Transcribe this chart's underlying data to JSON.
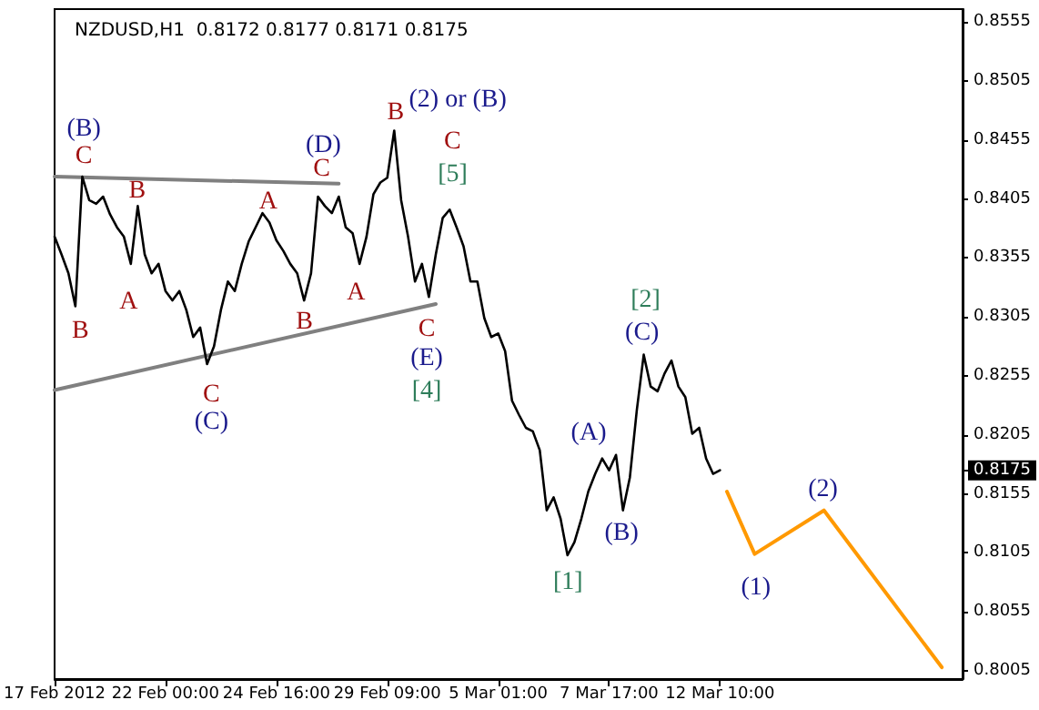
{
  "chart_data": {
    "type": "line",
    "title": "NZDUSD,H1  0.8172 0.8177 0.8171 0.8175",
    "categories": [
      "17 Feb 2012",
      null,
      null,
      null,
      null,
      null,
      null,
      null,
      null,
      null,
      null,
      null,
      null,
      null,
      null,
      null,
      "22 Feb 00:00",
      null,
      null,
      null,
      null,
      null,
      null,
      null,
      null,
      null,
      null,
      null,
      null,
      null,
      null,
      null,
      "24 Feb 16:00",
      null,
      null,
      null,
      null,
      null,
      null,
      null,
      null,
      null,
      null,
      null,
      null,
      null,
      null,
      null,
      "29 Feb 09:00",
      null,
      null,
      null,
      null,
      null,
      null,
      null,
      null,
      null,
      null,
      null,
      null,
      null,
      null,
      null,
      "5 Mar 01:00",
      null,
      null,
      null,
      null,
      null,
      null,
      null,
      null,
      null,
      null,
      null,
      null,
      null,
      null,
      null,
      "7 Mar 17:00",
      null,
      null,
      null,
      null,
      null,
      null,
      null,
      null,
      null,
      null,
      null,
      null,
      null,
      null,
      null,
      "12 Mar 10:00",
      null,
      null,
      null,
      null,
      null,
      null,
      null,
      null,
      null,
      null,
      null,
      null,
      null,
      null,
      null,
      null,
      null,
      null,
      null,
      null,
      null,
      null,
      null,
      null,
      null,
      null,
      null,
      null,
      null,
      null,
      null,
      null,
      null,
      null,
      null
    ],
    "ylim": [
      0.7998,
      0.8566
    ],
    "yticks": [
      0.8005,
      0.8055,
      0.8105,
      0.8155,
      {
        "value": 0.8175,
        "label": "0.8175"
      },
      0.8205,
      0.8255,
      0.8305,
      0.8355,
      0.8405,
      0.8455,
      0.8505,
      0.8555
    ],
    "grid": false,
    "marker": "none",
    "line_style": "solid",
    "series": [
      {
        "color": "#000000",
        "values": [
          0.8373,
          0.8358,
          0.8342,
          0.8314,
          0.8424,
          0.8404,
          0.8401,
          0.8407,
          0.8392,
          0.8381,
          0.8373,
          0.835,
          0.8399,
          0.8358,
          0.8342,
          0.835,
          0.8327,
          0.8319,
          0.8327,
          0.8311,
          0.8288,
          0.8296,
          0.8265,
          0.828,
          0.8311,
          0.8335,
          0.8327,
          0.835,
          0.8369,
          0.8381,
          0.8393,
          0.8385,
          0.837,
          0.8361,
          0.835,
          0.8342,
          0.8319,
          0.8342,
          0.8407,
          0.8399,
          0.8393,
          0.8407,
          0.8381,
          0.8376,
          0.835,
          0.8373,
          0.8409,
          0.8419,
          0.8423,
          0.8463,
          0.8404,
          0.8373,
          0.8335,
          0.835,
          0.8322,
          0.8358,
          0.8389,
          0.8396,
          0.8381,
          0.8365,
          0.8335,
          0.8335,
          0.8304,
          0.8288,
          0.8291,
          0.8276,
          0.8234,
          0.8222,
          0.8211,
          0.8208,
          0.8192,
          0.8141,
          0.8152,
          0.8134,
          0.8103,
          0.8114,
          0.8134,
          0.8157,
          0.8172,
          0.8185,
          0.8175,
          0.8188,
          0.8141,
          0.8169,
          0.8226,
          0.8273,
          0.8246,
          0.8242,
          0.8257,
          0.8268,
          0.8246,
          0.8237,
          0.8206,
          0.8211,
          0.8185,
          0.8172,
          0.8175,
          null,
          null,
          null,
          null,
          null,
          null,
          null,
          null,
          null,
          null,
          null,
          null,
          null,
          null,
          null,
          null,
          null,
          null,
          null,
          null,
          null,
          null,
          null,
          null,
          null,
          null,
          null,
          null,
          null,
          null,
          null,
          null,
          null,
          null,
          null
        ]
      },
      {
        "type": "line",
        "color": "#808080",
        "values": [
          0.8424,
          null,
          null,
          null,
          null,
          null,
          null,
          null,
          null,
          null,
          null,
          null,
          null,
          null,
          null,
          null,
          null,
          null,
          null,
          null,
          null,
          null,
          null,
          null,
          null,
          null,
          null,
          null,
          null,
          null,
          null,
          null,
          null,
          null,
          null,
          null,
          null,
          null,
          null,
          null,
          null,
          0.8418,
          null,
          null,
          null,
          null,
          null,
          null,
          null,
          null,
          null,
          null,
          null,
          null,
          null,
          null,
          null,
          null,
          null,
          null,
          null,
          null,
          null,
          null,
          null,
          null,
          null,
          null,
          null,
          null,
          null,
          null,
          null,
          null,
          null,
          null,
          null,
          null,
          null,
          null,
          null,
          null,
          null,
          null,
          null,
          null,
          null,
          null,
          null,
          null,
          null,
          null,
          null,
          null,
          null,
          null,
          null,
          null,
          null,
          null,
          null,
          null,
          null,
          null,
          null,
          null,
          null,
          null,
          null,
          null,
          null,
          null,
          null,
          null,
          null,
          null,
          null,
          null,
          null,
          null,
          null,
          null,
          null,
          null,
          null,
          null,
          null,
          null,
          null,
          null,
          null,
          null
        ]
      },
      {
        "type": "line",
        "color": "#808080",
        "values": [
          0.8243,
          null,
          null,
          null,
          null,
          null,
          null,
          null,
          null,
          null,
          null,
          null,
          null,
          null,
          null,
          null,
          null,
          null,
          null,
          null,
          null,
          null,
          null,
          null,
          null,
          null,
          null,
          null,
          null,
          null,
          null,
          null,
          null,
          null,
          null,
          null,
          null,
          null,
          null,
          null,
          null,
          null,
          null,
          null,
          null,
          null,
          null,
          null,
          null,
          null,
          null,
          null,
          null,
          null,
          null,
          0.8316,
          null,
          null,
          null,
          null,
          null,
          null,
          null,
          null,
          null,
          null,
          null,
          null,
          null,
          null,
          null,
          null,
          null,
          null,
          null,
          null,
          null,
          null,
          null,
          null,
          null,
          null,
          null,
          null,
          null,
          null,
          null,
          null,
          null,
          null,
          null,
          null,
          null,
          null,
          null,
          null,
          null,
          null,
          null,
          null,
          null,
          null,
          null,
          null,
          null,
          null,
          null,
          null,
          null,
          null,
          null,
          null,
          null,
          null,
          null,
          null,
          null,
          null,
          null,
          null,
          null,
          null,
          null,
          null,
          null,
          null,
          null,
          null,
          null,
          null,
          null,
          null
        ]
      },
      {
        "type": "line",
        "color": "#ff9900",
        "values": [
          null,
          null,
          null,
          null,
          null,
          null,
          null,
          null,
          null,
          null,
          null,
          null,
          null,
          null,
          null,
          null,
          null,
          null,
          null,
          null,
          null,
          null,
          null,
          null,
          null,
          null,
          null,
          null,
          null,
          null,
          null,
          null,
          null,
          null,
          null,
          null,
          null,
          null,
          null,
          null,
          null,
          null,
          null,
          null,
          null,
          null,
          null,
          null,
          null,
          null,
          null,
          null,
          null,
          null,
          null,
          null,
          null,
          null,
          null,
          null,
          null,
          null,
          null,
          null,
          null,
          null,
          null,
          null,
          null,
          null,
          null,
          null,
          null,
          null,
          null,
          null,
          null,
          null,
          null,
          null,
          null,
          null,
          null,
          null,
          null,
          null,
          null,
          null,
          null,
          null,
          null,
          null,
          null,
          null,
          null,
          null,
          null,
          0.8157,
          null,
          null,
          null,
          0.8104,
          null,
          null,
          null,
          null,
          null,
          null,
          null,
          null,
          null,
          0.8141,
          null,
          null,
          null,
          null,
          null,
          null,
          null,
          null,
          null,
          null,
          null,
          null,
          null,
          null,
          null,
          null,
          0.8008,
          null,
          null,
          null
        ]
      }
    ],
    "annotations": [
      "(B)",
      "C",
      "B",
      "B",
      "A",
      "C",
      "(C)",
      "A",
      "B",
      "(D)",
      "C",
      "A",
      "B",
      "(2) or (B)",
      "C",
      "[5]",
      "C",
      "(E)",
      "[4]",
      "[1]",
      "(A)",
      "(B)",
      "[2]",
      "(C)",
      "(1)",
      "(2)"
    ]
  }
}
